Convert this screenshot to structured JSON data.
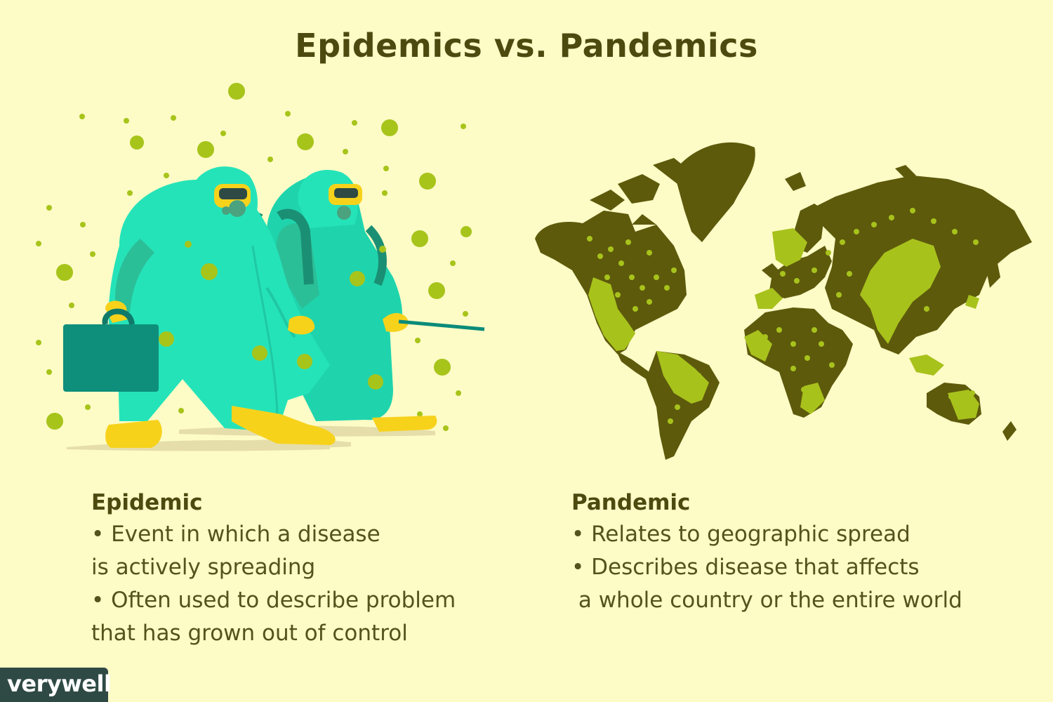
{
  "title": "Epidemics vs. Pandemics",
  "epidemic": {
    "heading": "Epidemic",
    "lines": [
      "• Event in which a disease",
      "is actively spreading",
      "• Often used to describe problem",
      "that has grown out of control"
    ]
  },
  "pandemic": {
    "heading": "Pandemic",
    "lines": [
      "• Relates to geographic spread",
      "• Describes disease that affects",
      " a whole country or the entire world"
    ]
  },
  "brand": "verywell",
  "colors": {
    "background": "#fdfbc6",
    "suit": "#25e3b9",
    "boots": "#f7d21b",
    "virus": "#a7c41a",
    "land": "#5d5a0c",
    "land_infected": "#a8c21c",
    "logo_bg": "#2f4a44"
  }
}
